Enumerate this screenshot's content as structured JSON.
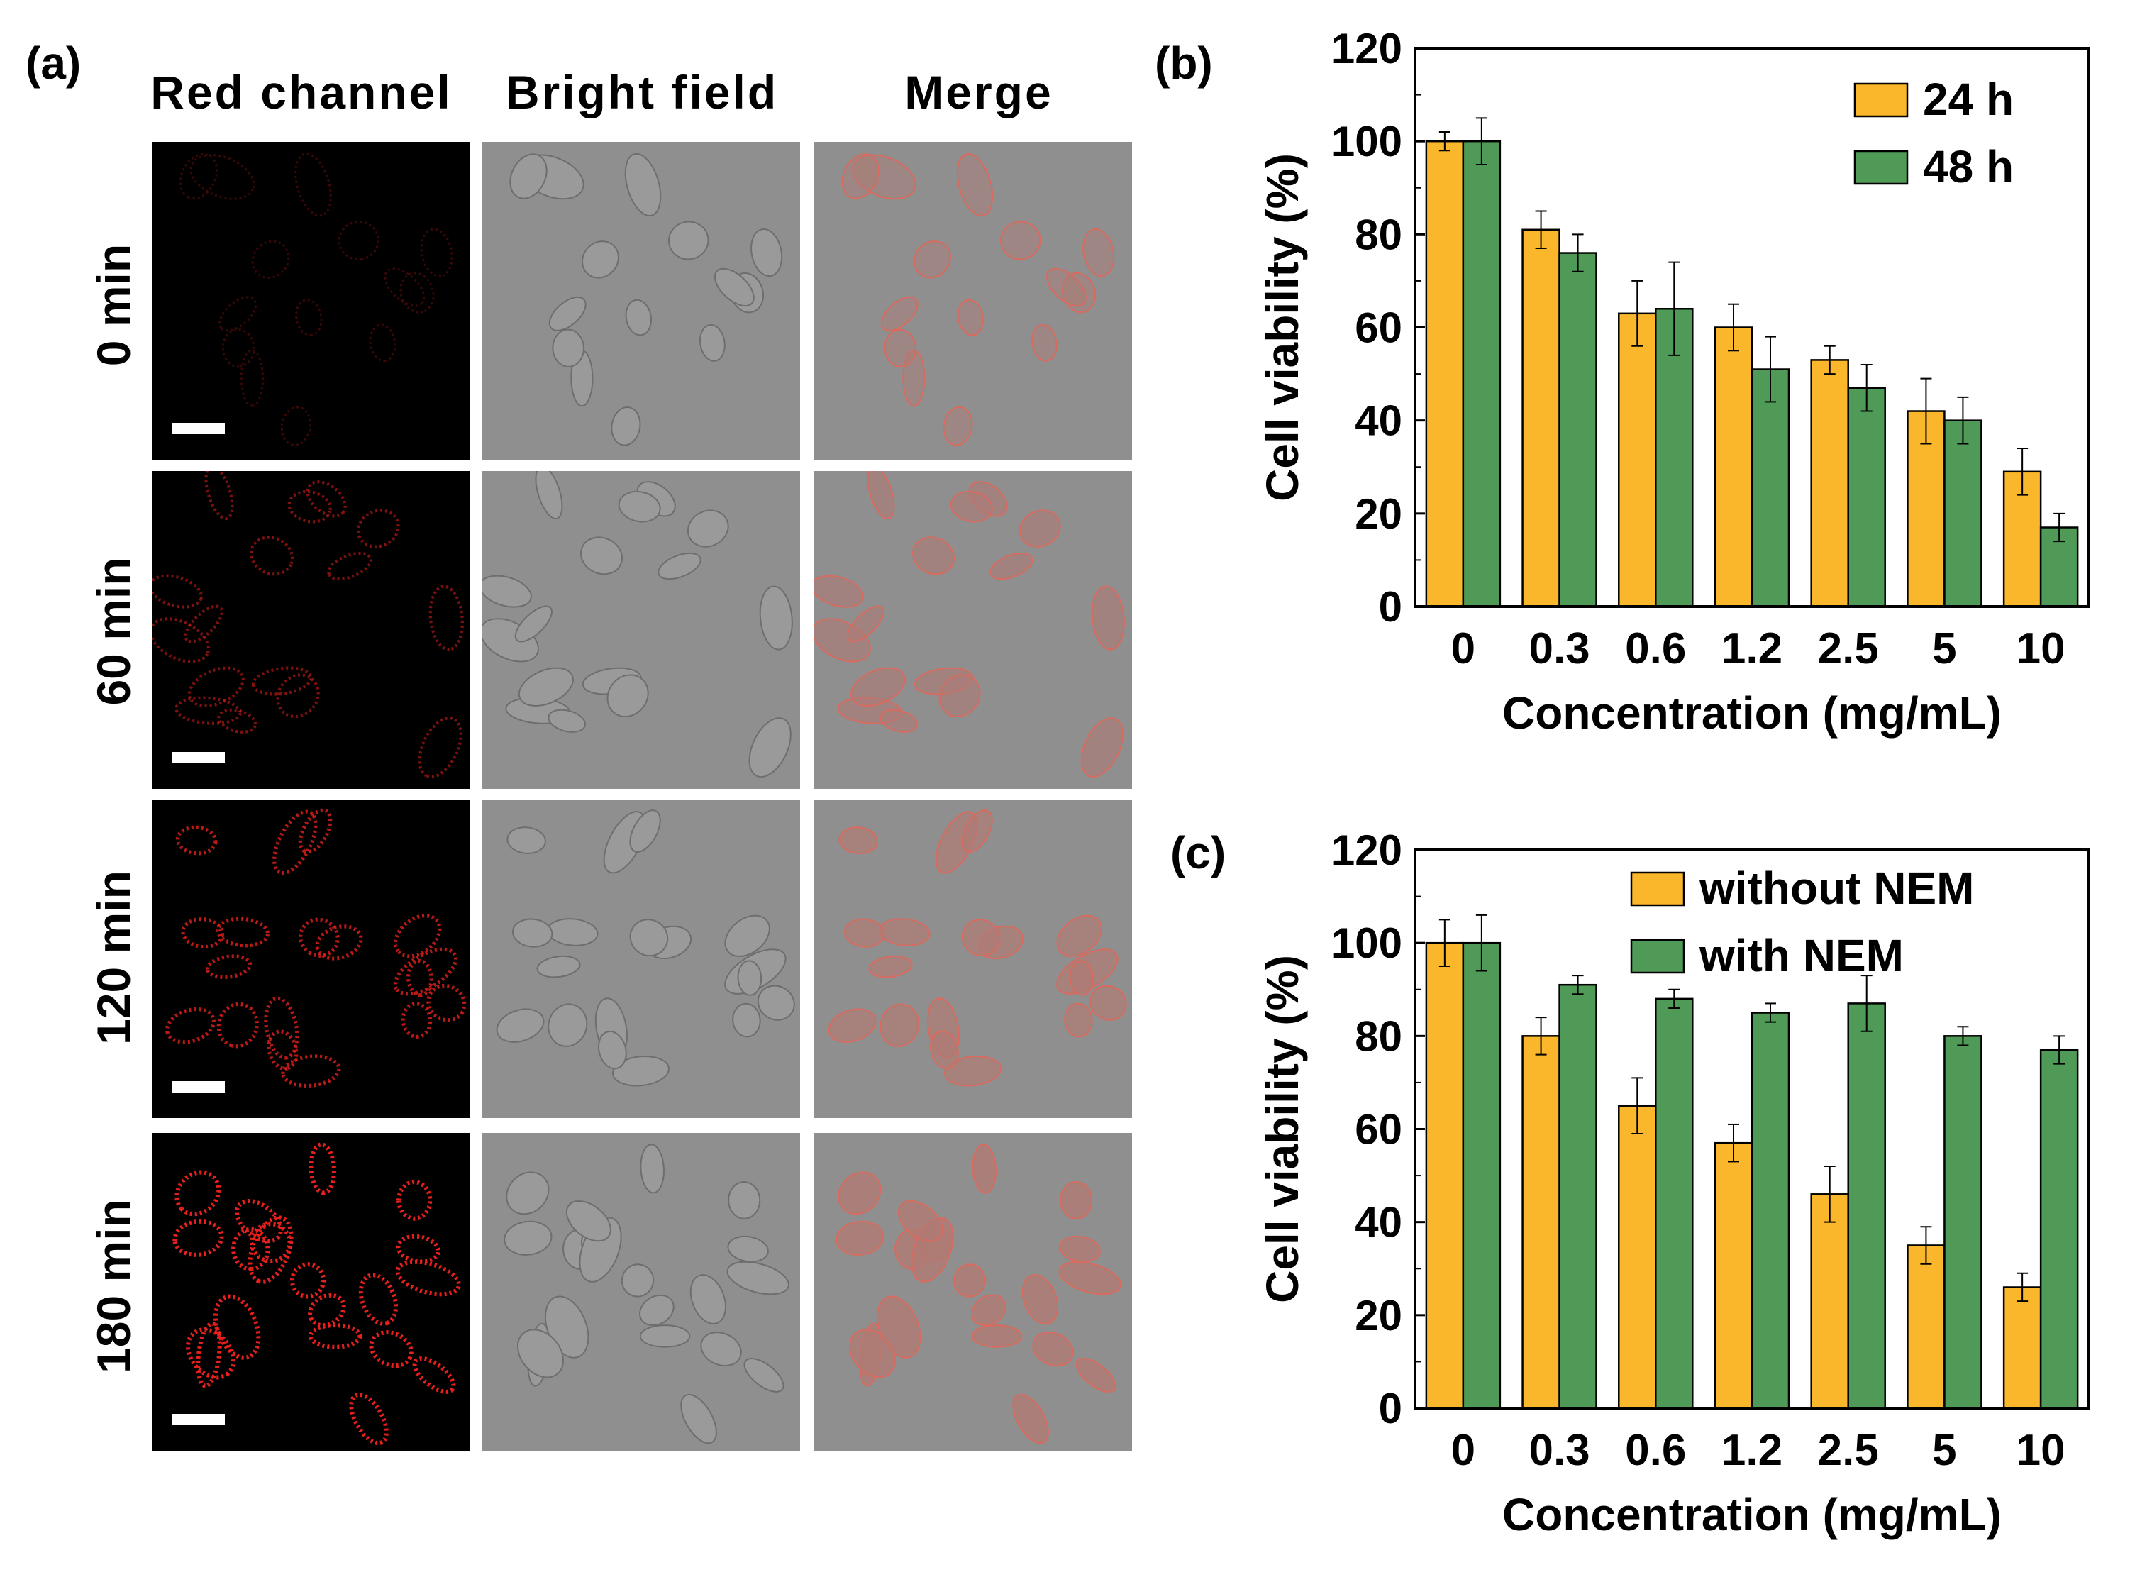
{
  "figure": {
    "panel_a": {
      "label": "(a)",
      "columns": [
        "Red channel",
        "Bright field",
        "Merge"
      ],
      "rows": [
        "0 min",
        "60 min",
        "120 min",
        "180 min"
      ]
    }
  },
  "colors": {
    "series1": "#FBB72B",
    "series2": "#4E9A56",
    "red_signal": "#E8201C",
    "bright_field": "#8F8F8F"
  },
  "chart_data": [
    {
      "panel": "(b)",
      "type": "bar",
      "title": "",
      "xlabel": "Concentration (mg/mL)",
      "ylabel": "Cell viability (%)",
      "ylim": [
        0,
        120
      ],
      "yticks": [
        "0",
        "20",
        "40",
        "60",
        "80",
        "100",
        "120"
      ],
      "categories": [
        "0",
        "0.3",
        "0.6",
        "1.2",
        "2.5",
        "5",
        "10"
      ],
      "legend_position": "top-right",
      "series": [
        {
          "name": "24 h",
          "values": [
            100,
            81,
            63,
            60,
            53,
            42,
            29
          ],
          "errors": [
            2,
            4,
            7,
            5,
            3,
            7,
            5
          ]
        },
        {
          "name": "48 h",
          "values": [
            100,
            76,
            64,
            51,
            47,
            40,
            17
          ],
          "errors": [
            5,
            4,
            10,
            7,
            5,
            5,
            3
          ]
        }
      ]
    },
    {
      "panel": "(c)",
      "type": "bar",
      "title": "",
      "xlabel": "Concentration (mg/mL)",
      "ylabel": "Cell viability (%)",
      "ylim": [
        0,
        120
      ],
      "yticks": [
        "0",
        "20",
        "40",
        "60",
        "80",
        "100",
        "120"
      ],
      "categories": [
        "0",
        "0.3",
        "0.6",
        "1.2",
        "2.5",
        "5",
        "10"
      ],
      "legend_position": "top-right",
      "series": [
        {
          "name": "without NEM",
          "values": [
            100,
            80,
            65,
            57,
            46,
            35,
            26
          ],
          "errors": [
            5,
            4,
            6,
            4,
            6,
            4,
            3
          ]
        },
        {
          "name": "with NEM",
          "values": [
            100,
            91,
            88,
            85,
            87,
            80,
            77
          ],
          "errors": [
            6,
            2,
            2,
            2,
            6,
            2,
            3
          ]
        }
      ]
    }
  ]
}
